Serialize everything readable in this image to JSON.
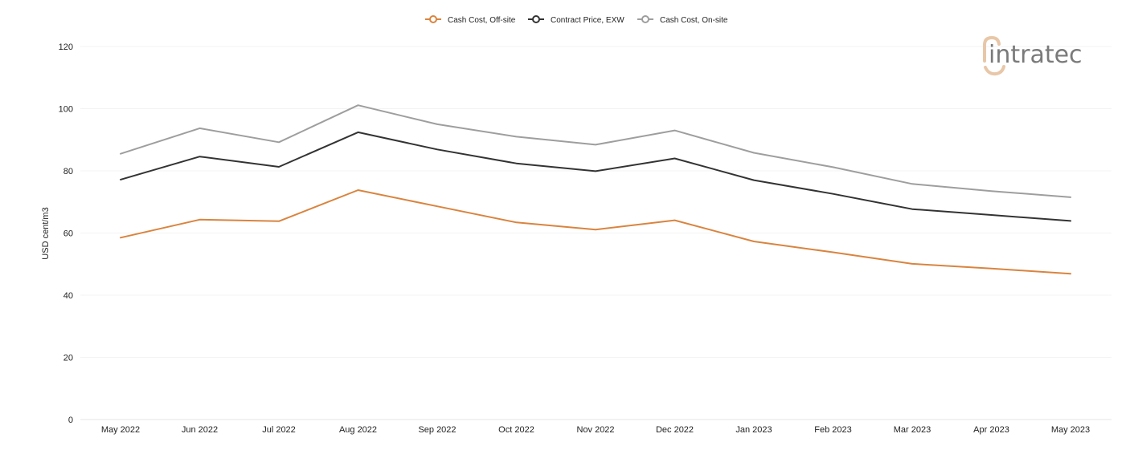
{
  "logo": {
    "text": "intratec",
    "accent_color": "#e8c7a8",
    "text_color": "#7a7a7a"
  },
  "chart_data": {
    "type": "line",
    "title": "",
    "xlabel": "",
    "ylabel": "USD cent/m3",
    "ylim": [
      0,
      120
    ],
    "yticks": [
      0,
      20,
      40,
      60,
      80,
      100,
      120
    ],
    "grid": "horizontal",
    "legend_position": "top-center",
    "categories": [
      "May 2022",
      "Jun 2022",
      "Jul 2022",
      "Aug 2022",
      "Sep 2022",
      "Oct 2022",
      "Nov 2022",
      "Dec 2022",
      "Jan 2023",
      "Feb 2023",
      "Mar 2023",
      "Apr 2023",
      "May 2023"
    ],
    "series": [
      {
        "name": "Cash Cost, Off-site",
        "color": "#d9843f",
        "values": [
          58.5,
          64.3,
          63.8,
          73.8,
          68.6,
          63.4,
          61.1,
          64.1,
          57.3,
          53.8,
          50.1,
          48.6,
          46.9
        ]
      },
      {
        "name": "Contract Price, EXW",
        "color": "#333333",
        "values": [
          77.2,
          84.6,
          81.3,
          92.4,
          86.9,
          82.4,
          79.9,
          84.0,
          77.0,
          72.6,
          67.7,
          65.8,
          63.9
        ]
      },
      {
        "name": "Cash Cost, On-site",
        "color": "#9e9e9e",
        "values": [
          85.5,
          93.7,
          89.2,
          101.1,
          95.0,
          91.0,
          88.4,
          93.0,
          85.8,
          81.2,
          75.8,
          73.5,
          71.5
        ]
      }
    ]
  }
}
